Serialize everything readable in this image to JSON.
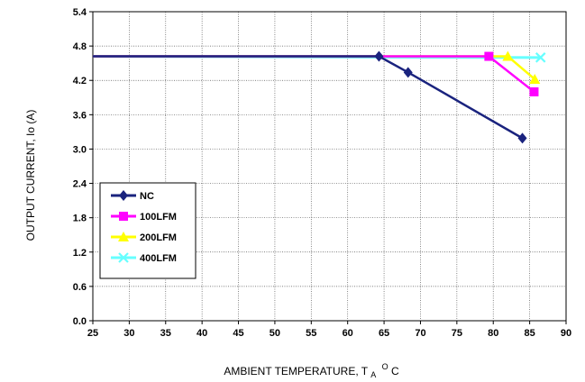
{
  "chart_data": {
    "type": "line",
    "title": "",
    "xlabel": "AMBIENT TEMPERATURE, T",
    "xlabel_sub": "A",
    "xlabel_sup": "O",
    "xlabel_end": "C",
    "ylabel": "OUTPUT CURRENT, Io  (A)",
    "xlim": [
      25,
      90
    ],
    "ylim": [
      0.0,
      5.4
    ],
    "x_ticks": [
      "25",
      "30",
      "35",
      "40",
      "45",
      "50",
      "55",
      "60",
      "65",
      "70",
      "75",
      "80",
      "85",
      "90"
    ],
    "y_ticks": [
      "0.0",
      "0.6",
      "1.2",
      "1.8",
      "2.4",
      "3.0",
      "3.6",
      "4.2",
      "4.8",
      "5.4"
    ],
    "grid": true,
    "legend_position": "lower-left",
    "series": [
      {
        "name": "NC",
        "color": "#1a237e",
        "marker": "diamond",
        "points": [
          [
            25,
            4.62
          ],
          [
            64.3,
            4.62
          ],
          [
            68.3,
            4.34
          ],
          [
            84.0,
            3.19
          ]
        ]
      },
      {
        "name": "100LFM",
        "color": "#ff00ff",
        "marker": "square",
        "points": [
          [
            25,
            4.62
          ],
          [
            79.4,
            4.62
          ],
          [
            85.6,
            4.0
          ]
        ]
      },
      {
        "name": "200LFM",
        "color": "#ffff00",
        "marker": "triangle",
        "points": [
          [
            25,
            4.62
          ],
          [
            82.0,
            4.62
          ],
          [
            85.7,
            4.22
          ]
        ]
      },
      {
        "name": "400LFM",
        "color": "#66ffff",
        "marker": "x",
        "points": [
          [
            25,
            4.62
          ],
          [
            86.5,
            4.6
          ]
        ]
      }
    ]
  }
}
